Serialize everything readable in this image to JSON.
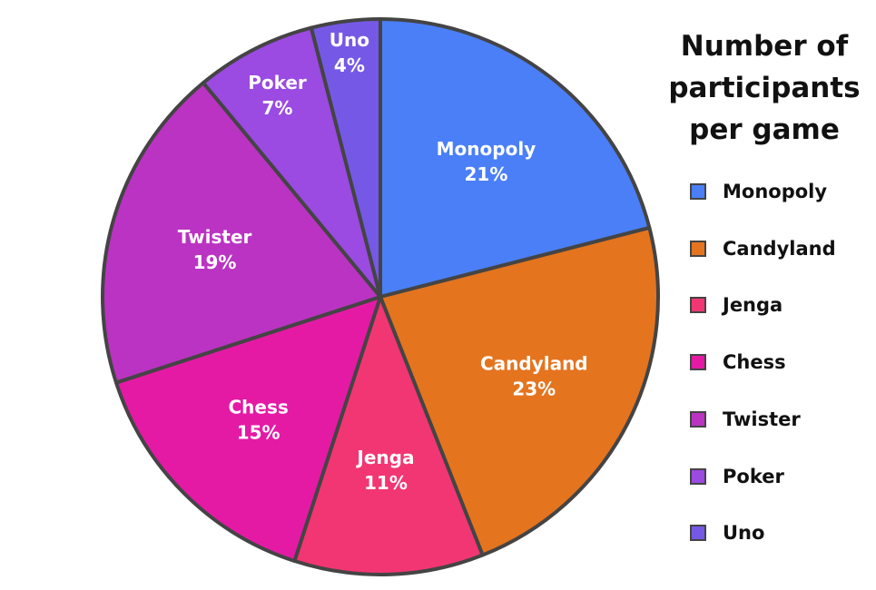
{
  "chart_data": {
    "type": "pie",
    "title_lines": [
      "Number of",
      "participants",
      "per game"
    ],
    "slices": [
      {
        "label": "Monopoly",
        "value": 21,
        "value_label": "21%",
        "color": "#4a7ff7"
      },
      {
        "label": "Candyland",
        "value": 23,
        "value_label": "23%",
        "color": "#e5741f"
      },
      {
        "label": "Jenga",
        "value": 11,
        "value_label": "11%",
        "color": "#f23673"
      },
      {
        "label": "Chess",
        "value": 15,
        "value_label": "15%",
        "color": "#e41aa5"
      },
      {
        "label": "Twister",
        "value": 19,
        "value_label": "19%",
        "color": "#bb33c2"
      },
      {
        "label": "Poker",
        "value": 7,
        "value_label": "7%",
        "color": "#9b4ae2"
      },
      {
        "label": "Uno",
        "value": 4,
        "value_label": "4%",
        "color": "#7559e6"
      }
    ],
    "legend_position": "right"
  }
}
